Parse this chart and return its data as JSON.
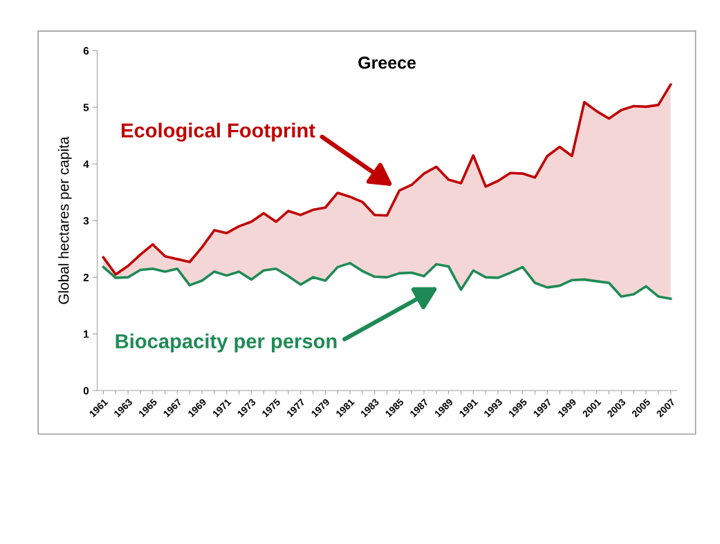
{
  "chart_data": {
    "type": "line",
    "title": "Greece",
    "ylabel": "Global hectares per capita",
    "categories": [
      "1961",
      null,
      "1963",
      null,
      "1965",
      null,
      "1967",
      null,
      "1969",
      null,
      "1971",
      null,
      "1973",
      null,
      "1975",
      null,
      "1977",
      null,
      "1979",
      null,
      "1981",
      null,
      "1983",
      null,
      "1985",
      null,
      "1987",
      null,
      "1989",
      null,
      "1991",
      null,
      "1993",
      null,
      "1995",
      null,
      "1997",
      null,
      "1999",
      null,
      "2001",
      null,
      "2003",
      null,
      "2005",
      null,
      "2007"
    ],
    "series": [
      {
        "name": "Ecological Footprint",
        "color": "#c00000",
        "values": [
          2.35,
          2.05,
          2.2,
          2.4,
          2.58,
          2.37,
          2.32,
          2.27,
          2.53,
          2.83,
          2.78,
          2.9,
          2.98,
          3.13,
          2.98,
          3.17,
          3.1,
          3.19,
          3.23,
          3.49,
          3.42,
          3.33,
          3.1,
          3.09,
          3.53,
          3.63,
          3.83,
          3.95,
          3.72,
          3.66,
          4.15,
          3.6,
          3.7,
          3.84,
          3.83,
          3.76,
          4.14,
          4.3,
          4.14,
          5.09,
          4.93,
          4.8,
          4.95,
          5.02,
          5.01,
          5.04,
          5.4
        ],
        "lower": [
          2.18,
          1.99,
          2.0,
          2.13,
          2.15,
          2.1,
          2.15,
          1.86,
          1.94,
          2.1,
          2.03,
          2.1,
          1.96,
          2.12,
          2.15,
          2.02,
          1.87,
          2.0,
          1.94,
          2.18,
          2.25,
          2.11,
          2.01,
          2.0,
          2.07,
          2.08,
          2.02,
          2.23,
          2.19,
          1.78,
          2.12,
          2.0,
          1.99,
          2.08,
          2.18,
          1.9,
          1.82,
          1.85,
          1.95,
          1.96,
          1.93,
          1.9,
          1.66,
          1.7,
          1.84,
          1.66,
          1.62
        ],
        "upper": [
          2.35,
          2.05,
          2.2,
          2.4,
          2.58,
          2.37,
          2.32,
          2.27,
          2.53,
          2.83,
          2.78,
          2.9,
          2.98,
          3.13,
          2.98,
          3.17,
          3.1,
          3.19,
          3.23,
          3.49,
          3.42,
          3.33,
          3.1,
          3.09,
          3.53,
          3.63,
          3.83,
          3.95,
          3.72,
          3.66,
          4.15,
          3.6,
          3.7,
          3.84,
          3.83,
          3.76,
          4.14,
          4.3,
          4.14,
          5.09,
          4.93,
          4.8,
          4.95,
          5.02,
          5.01,
          5.04,
          5.4
        ]
      },
      {
        "name": "Biocapacity per person",
        "color": "#1e8a55",
        "values": [
          2.18,
          1.99,
          2.0,
          2.13,
          2.15,
          2.1,
          2.15,
          1.86,
          1.94,
          2.1,
          2.03,
          2.1,
          1.96,
          2.12,
          2.15,
          2.02,
          1.87,
          2.0,
          1.94,
          2.18,
          2.25,
          2.11,
          2.01,
          2.0,
          2.07,
          2.08,
          2.02,
          2.23,
          2.19,
          1.78,
          2.12,
          2.0,
          1.99,
          2.08,
          2.18,
          1.9,
          1.82,
          1.85,
          1.95,
          1.96,
          1.93,
          1.9,
          1.66,
          1.7,
          1.84,
          1.66,
          1.62
        ]
      }
    ],
    "ylim": [
      0,
      6
    ],
    "yticks": [
      0,
      1,
      2,
      3,
      4,
      5,
      6
    ],
    "grid": false,
    "legend": false
  }
}
